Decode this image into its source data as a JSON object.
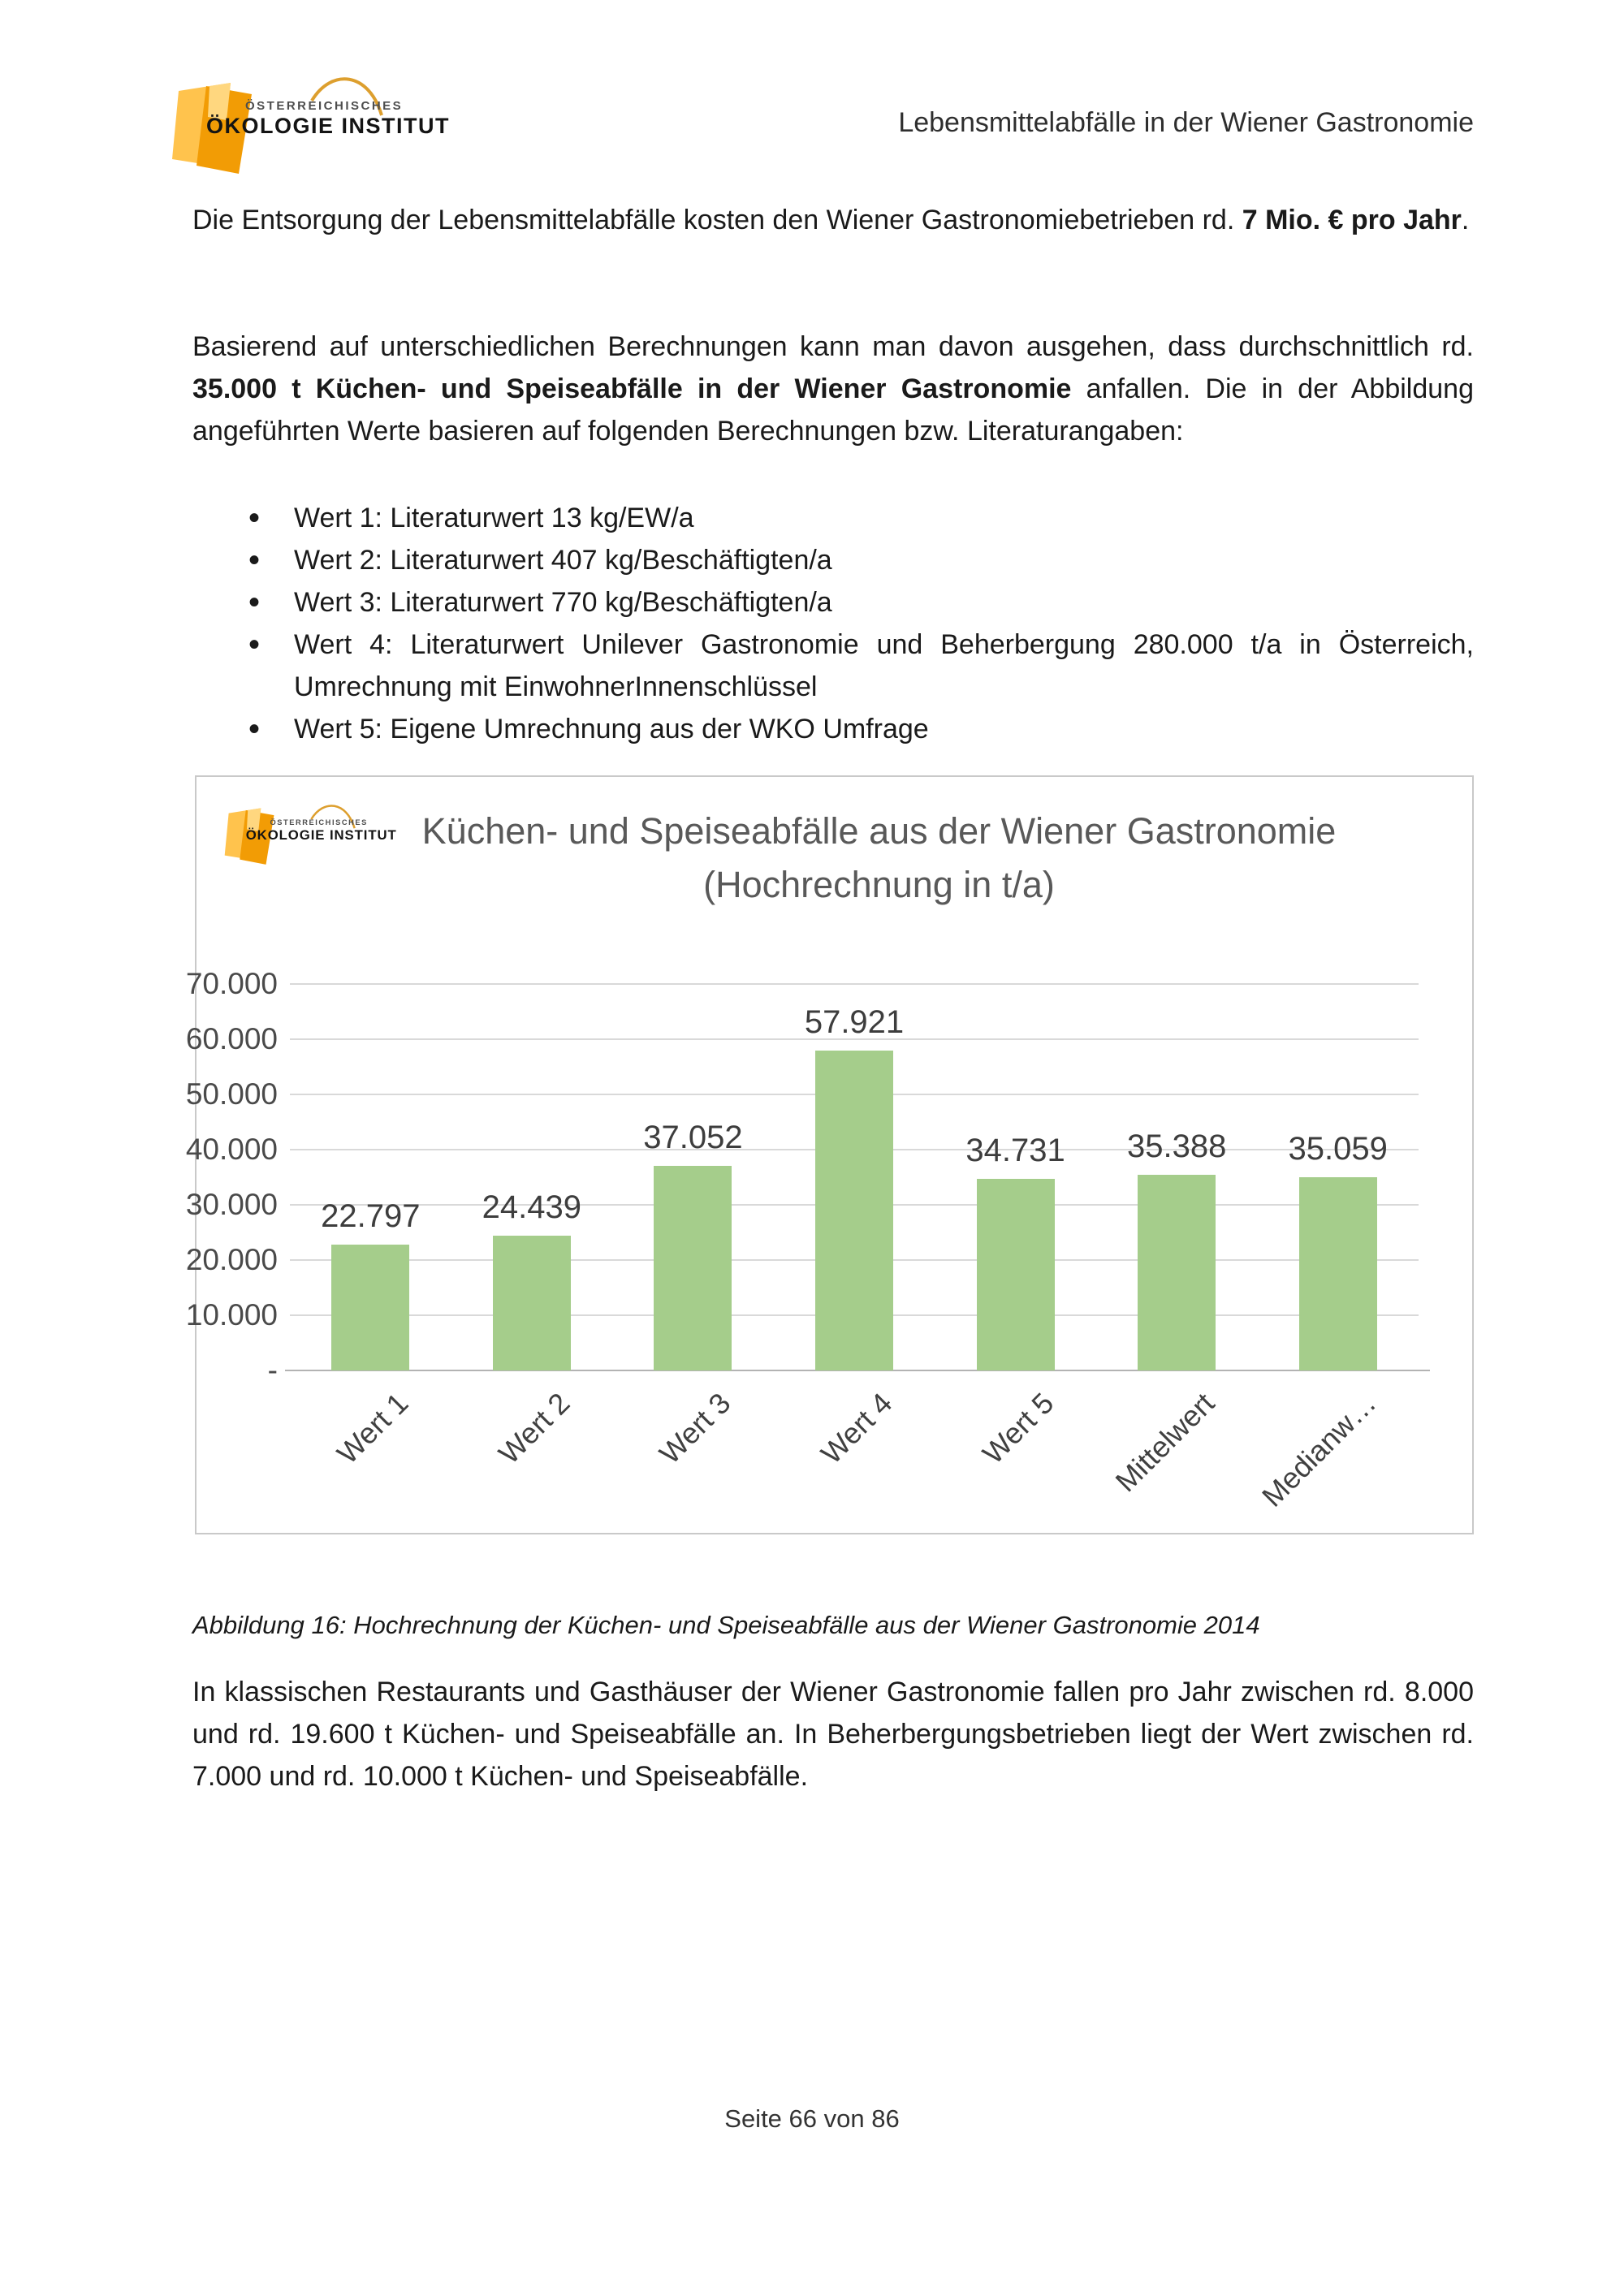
{
  "header": {
    "title": "Lebensmittelabfälle in der Wiener Gastronomie"
  },
  "logo": {
    "line1": "ÖSTERREICHISCHES",
    "line2": "ÖKOLOGIE INSTITUT",
    "orange": "#f29c05",
    "light_orange": "#ffc34d"
  },
  "paragraphs": {
    "p1": [
      {
        "t": "Die Entsorgung der Lebensmittelabfälle kosten den Wiener Gastronomiebetrieben rd. ",
        "b": false
      },
      {
        "t": "7 Mio. € pro Jahr",
        "b": true
      },
      {
        "t": ".",
        "b": false
      }
    ],
    "p2": [
      {
        "t": "Basierend auf unterschiedlichen Berechnungen kann man davon ausgehen, dass durchschnittlich rd. ",
        "b": false
      },
      {
        "t": "35.000 t Küchen- und Speiseabfälle in der Wiener Gastronomie",
        "b": true
      },
      {
        "t": " anfallen. Die in der Abbildung angeführten Werte basieren auf folgenden Berechnungen bzw. Literaturangaben:",
        "b": false
      }
    ],
    "p3": [
      {
        "t": "In klassischen Restaurants und Gasthäuser der Wiener Gastronomie fallen pro Jahr zwischen rd. 8.000 und rd. 19.600 t Küchen- und Speiseabfälle an. In Beherbergungsbetrieben liegt der Wert zwischen rd. 7.000 und rd. 10.000 t Küchen- und Speiseabfälle.",
        "b": false
      }
    ]
  },
  "bullets": [
    "Wert 1: Literaturwert 13 kg/EW/a",
    "Wert 2: Literaturwert 407 kg/Beschäftigten/a",
    "Wert 3: Literaturwert 770 kg/Beschäftigten/a",
    "Wert 4: Literaturwert Unilever Gastronomie und Beherbergung 280.000 t/a in Österreich, Umrechnung mit EinwohnerInnenschlüssel",
    "Wert 5: Eigene Umrechnung aus der WKO Umfrage"
  ],
  "figure_caption": "Abbildung 16: Hochrechnung der Küchen- und Speiseabfälle aus der Wiener Gastronomie 2014",
  "footer": {
    "page_label": "Seite 66 von 86"
  },
  "chart_data": {
    "type": "bar",
    "title": "Küchen- und Speiseabfälle aus der Wiener Gastronomie",
    "subtitle": "(Hochrechnung in t/a)",
    "categories": [
      "Wert 1",
      "Wert 2",
      "Wert 3",
      "Wert 4",
      "Wert 5",
      "Mittelwert",
      "Medianw…"
    ],
    "values": [
      22797,
      24439,
      37052,
      57921,
      34731,
      35388,
      35059
    ],
    "value_labels": [
      "22.797",
      "24.439",
      "37.052",
      "57.921",
      "34.731",
      "35.388",
      "35.059"
    ],
    "xlabel": "",
    "ylabel": "",
    "ylim": [
      0,
      70000
    ],
    "ymax": 70000,
    "tick_labels": [
      "70.000",
      "60.000",
      "50.000",
      "40.000",
      "30.000",
      "20.000",
      "10.000",
      "-"
    ],
    "grid": true,
    "legend": "none",
    "bar_color": "#a5cd8b",
    "grid_color": "#d9d9d9",
    "axis_color": "#b3b3b3",
    "label_color": "#3d3d3d"
  }
}
